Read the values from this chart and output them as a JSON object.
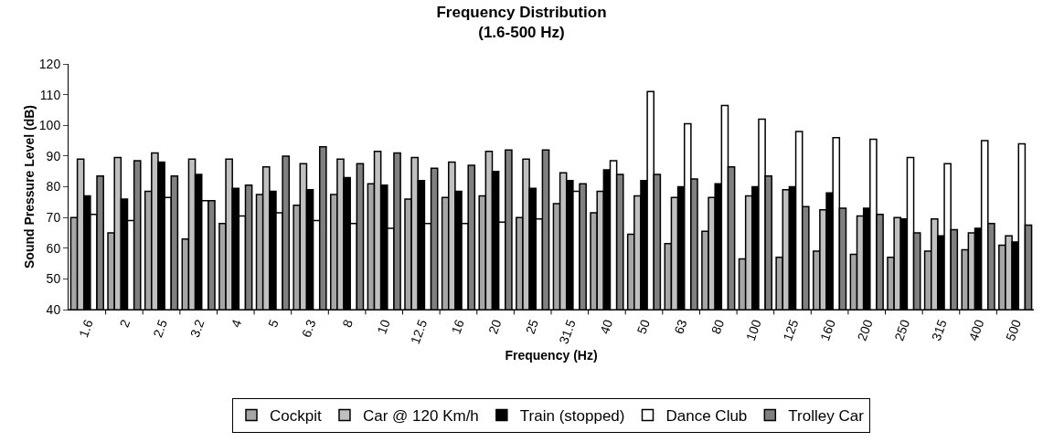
{
  "chart_data": {
    "type": "bar",
    "title": "Frequency Distribution",
    "subtitle": "(1.6-500 Hz)",
    "xlabel": "Frequency (Hz)",
    "ylabel": "Sound Pressure Level (dB)",
    "categories": [
      "1.6",
      "2",
      "2.5",
      "3.2",
      "4",
      "5",
      "6.3",
      "8",
      "10",
      "12.5",
      "16",
      "20",
      "25",
      "31.5",
      "40",
      "50",
      "63",
      "80",
      "100",
      "125",
      "160",
      "200",
      "250",
      "315",
      "400",
      "500"
    ],
    "series": [
      {
        "name": "Cockpit",
        "color": "#a6a6a6",
        "values": [
          70,
          65,
          78.5,
          63,
          68,
          77.5,
          74,
          77.5,
          81,
          76,
          76.5,
          77,
          70,
          74.5,
          71.5,
          64.5,
          61.5,
          65.5,
          56.5,
          57,
          59,
          58,
          57,
          59,
          59.5,
          61
        ]
      },
      {
        "name": "Car @ 120 Km/h",
        "color": "#c0c0c0",
        "values": [
          89,
          89.5,
          91,
          89,
          89,
          86.5,
          87.5,
          89,
          91.5,
          89.5,
          88,
          91.5,
          89,
          84.5,
          78.5,
          77,
          76.5,
          76.5,
          77,
          79,
          72.5,
          70.5,
          70,
          69.5,
          65,
          64
        ]
      },
      {
        "name": "Train (stopped)",
        "color": "#000000",
        "values": [
          77,
          76,
          88,
          84,
          79.5,
          78.5,
          79,
          83,
          80.5,
          82,
          78.5,
          85,
          79.5,
          82,
          85.5,
          82,
          80,
          81,
          80,
          80,
          78,
          73,
          69.5,
          64,
          66.5,
          62
        ]
      },
      {
        "name": "Dance Club",
        "color": "#ffffff",
        "values": [
          71,
          69,
          76.5,
          75.5,
          70.5,
          71.5,
          69,
          68,
          66.5,
          68,
          68,
          68.5,
          69.5,
          78.5,
          88.5,
          111,
          100.5,
          106.5,
          102,
          98,
          96,
          95.5,
          89.5,
          87.5,
          95,
          94
        ]
      },
      {
        "name": "Trolley Car",
        "color": "#808080",
        "values": [
          83.5,
          88.5,
          83.5,
          75.5,
          80.5,
          90,
          93,
          87.5,
          91,
          86,
          87,
          92,
          92,
          81,
          84,
          84,
          82.5,
          86.5,
          83.5,
          73.5,
          73,
          71,
          65,
          66,
          68,
          67.5
        ]
      }
    ],
    "ylim": [
      40,
      120
    ],
    "yticks": [
      40,
      50,
      60,
      70,
      80,
      90,
      100,
      110,
      120
    ],
    "grid": false,
    "legend": "bottom"
  }
}
